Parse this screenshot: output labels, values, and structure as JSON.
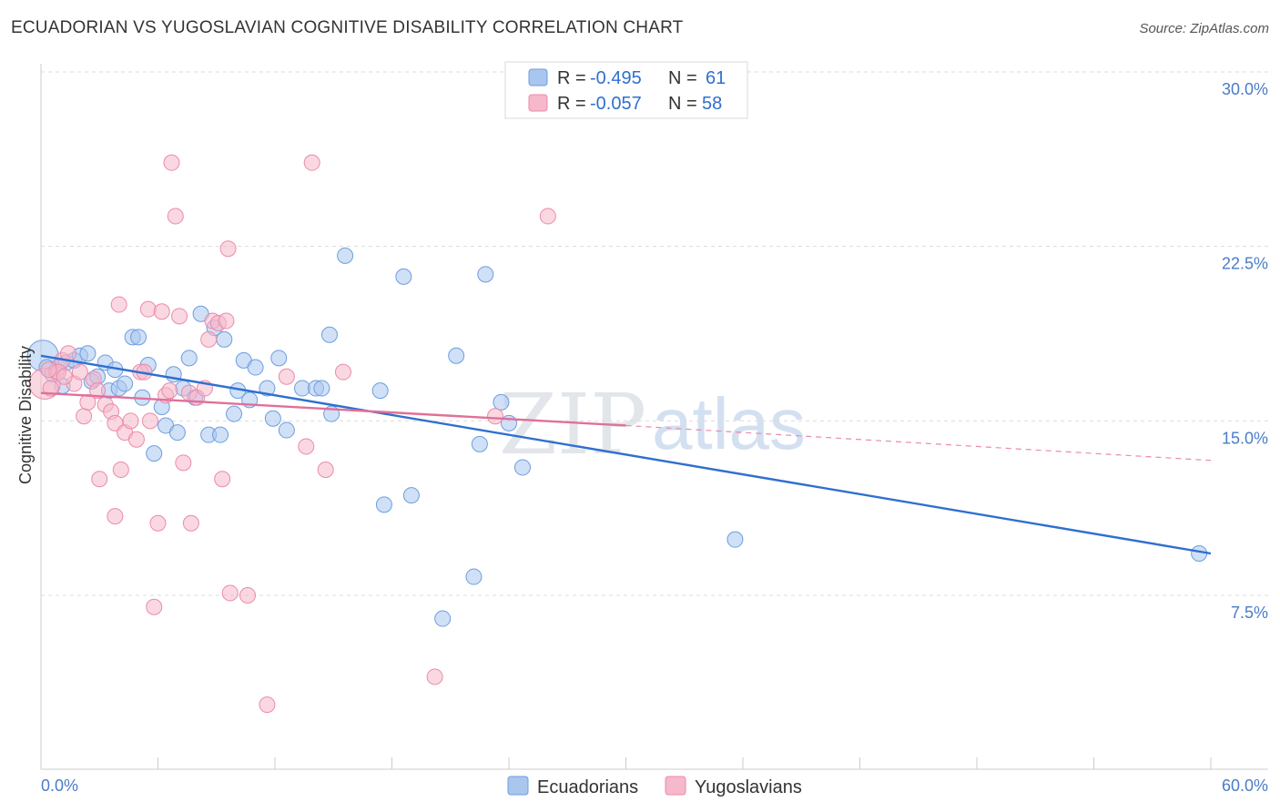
{
  "header": {
    "title": "ECUADORIAN VS YUGOSLAVIAN COGNITIVE DISABILITY CORRELATION CHART",
    "source": "Source: ZipAtlas.com"
  },
  "watermark": {
    "zip": "ZIP",
    "atlas": "atlas"
  },
  "legend_top": [
    {
      "r_label": "R =",
      "r_value": "-0.495",
      "n_label": "N =",
      "n_value": "61",
      "color": "#a9c6ee",
      "stroke": "#6c9ee0"
    },
    {
      "r_label": "R =",
      "r_value": "-0.057",
      "n_label": "N =",
      "n_value": "58",
      "color": "#f6b8cb",
      "stroke": "#ec8aaa"
    }
  ],
  "legend_bottom": [
    {
      "label": "Ecuadorians",
      "color": "#a9c6ee"
    },
    {
      "label": "Yugoslavians",
      "color": "#f6b8cb"
    }
  ],
  "chart_data": {
    "type": "scatter",
    "title": "ECUADORIAN VS YUGOSLAVIAN COGNITIVE DISABILITY CORRELATION CHART",
    "ylabel": "Cognitive Disability",
    "xlabel": "",
    "xlim": [
      0,
      60
    ],
    "ylim": [
      0,
      31
    ],
    "x_ticks": [
      0,
      60
    ],
    "x_tick_labels": [
      "0.0%",
      "60.0%"
    ],
    "y_ticks": [
      7.5,
      15.0,
      22.5,
      30.0
    ],
    "y_tick_labels": [
      "7.5%",
      "15.0%",
      "22.5%",
      "30.0%"
    ],
    "grid": "horizontal dashed",
    "legend_position": "top-center",
    "series": [
      {
        "name": "Ecuadorians",
        "color": "#6c9ee0",
        "fill": "#a9c6ee",
        "trend": {
          "x": [
            0,
            60
          ],
          "y": [
            17.8,
            9.3
          ],
          "style": "solid",
          "color": "#2f6fd0"
        },
        "points": [
          [
            0.1,
            17.8
          ],
          [
            0.3,
            17.3
          ],
          [
            0.6,
            17.0
          ],
          [
            0.9,
            17.3
          ],
          [
            1.1,
            16.5
          ],
          [
            1.3,
            17.5
          ],
          [
            1.7,
            17.6
          ],
          [
            2.0,
            17.8
          ],
          [
            2.4,
            17.9
          ],
          [
            2.6,
            16.7
          ],
          [
            2.9,
            16.9
          ],
          [
            3.3,
            17.5
          ],
          [
            3.5,
            16.3
          ],
          [
            3.8,
            17.2
          ],
          [
            4.0,
            16.4
          ],
          [
            4.3,
            16.6
          ],
          [
            4.7,
            18.6
          ],
          [
            5.0,
            18.6
          ],
          [
            5.2,
            16.0
          ],
          [
            5.5,
            17.4
          ],
          [
            5.8,
            13.6
          ],
          [
            6.2,
            15.6
          ],
          [
            6.4,
            14.8
          ],
          [
            6.8,
            17.0
          ],
          [
            7.0,
            14.5
          ],
          [
            7.3,
            16.4
          ],
          [
            7.6,
            17.7
          ],
          [
            7.9,
            16.0
          ],
          [
            8.2,
            19.6
          ],
          [
            8.6,
            14.4
          ],
          [
            8.9,
            19.0
          ],
          [
            9.2,
            14.4
          ],
          [
            9.4,
            18.5
          ],
          [
            9.9,
            15.3
          ],
          [
            10.1,
            16.3
          ],
          [
            10.4,
            17.6
          ],
          [
            10.7,
            15.9
          ],
          [
            11.0,
            17.3
          ],
          [
            11.6,
            16.4
          ],
          [
            11.9,
            15.1
          ],
          [
            12.2,
            17.7
          ],
          [
            12.6,
            14.6
          ],
          [
            13.4,
            16.4
          ],
          [
            14.1,
            16.4
          ],
          [
            14.4,
            16.4
          ],
          [
            14.8,
            18.7
          ],
          [
            14.9,
            15.3
          ],
          [
            15.6,
            22.1
          ],
          [
            17.4,
            16.3
          ],
          [
            17.6,
            11.4
          ],
          [
            18.6,
            21.2
          ],
          [
            19.0,
            11.8
          ],
          [
            20.6,
            6.5
          ],
          [
            21.3,
            17.8
          ],
          [
            22.2,
            8.3
          ],
          [
            22.5,
            14.0
          ],
          [
            22.8,
            21.3
          ],
          [
            23.6,
            15.8
          ],
          [
            24.0,
            14.9
          ],
          [
            24.7,
            13.0
          ],
          [
            35.6,
            9.9
          ],
          [
            59.4,
            9.3
          ]
        ]
      },
      {
        "name": "Yugoslavians",
        "color": "#ec8aaa",
        "fill": "#f6b8cb",
        "trend": {
          "x": [
            0,
            30
          ],
          "y": [
            16.2,
            14.8
          ],
          "style": "solid",
          "color": "#e0709a"
        },
        "trend_ext": {
          "x": [
            30,
            60
          ],
          "y": [
            14.8,
            13.3
          ],
          "style": "dashed",
          "color": "#e88aac"
        },
        "points": [
          [
            0.2,
            16.6
          ],
          [
            0.5,
            16.4
          ],
          [
            0.8,
            17.1
          ],
          [
            1.1,
            17.6
          ],
          [
            1.4,
            17.9
          ],
          [
            1.7,
            16.6
          ],
          [
            2.0,
            17.1
          ],
          [
            2.2,
            15.2
          ],
          [
            2.4,
            15.8
          ],
          [
            2.7,
            16.8
          ],
          [
            2.9,
            16.3
          ],
          [
            3.0,
            12.5
          ],
          [
            3.3,
            15.7
          ],
          [
            3.6,
            15.4
          ],
          [
            3.8,
            14.9
          ],
          [
            3.8,
            10.9
          ],
          [
            4.0,
            20.0
          ],
          [
            4.1,
            12.9
          ],
          [
            4.3,
            14.5
          ],
          [
            4.6,
            15.0
          ],
          [
            4.9,
            14.2
          ],
          [
            5.1,
            17.1
          ],
          [
            5.3,
            17.1
          ],
          [
            5.5,
            19.8
          ],
          [
            5.6,
            15.0
          ],
          [
            5.8,
            7.0
          ],
          [
            6.0,
            10.6
          ],
          [
            6.2,
            19.7
          ],
          [
            6.4,
            16.1
          ],
          [
            6.6,
            16.3
          ],
          [
            6.7,
            26.1
          ],
          [
            6.9,
            23.8
          ],
          [
            7.1,
            19.5
          ],
          [
            7.3,
            13.2
          ],
          [
            7.6,
            16.2
          ],
          [
            7.7,
            10.6
          ],
          [
            8.0,
            16.0
          ],
          [
            8.4,
            16.4
          ],
          [
            8.6,
            18.5
          ],
          [
            8.8,
            19.3
          ],
          [
            9.1,
            19.2
          ],
          [
            9.3,
            12.5
          ],
          [
            9.5,
            19.3
          ],
          [
            9.6,
            22.4
          ],
          [
            9.7,
            7.6
          ],
          [
            10.6,
            7.5
          ],
          [
            11.6,
            2.8
          ],
          [
            12.6,
            16.9
          ],
          [
            13.6,
            13.9
          ],
          [
            13.9,
            26.1
          ],
          [
            14.6,
            12.9
          ],
          [
            15.5,
            17.1
          ],
          [
            20.2,
            4.0
          ],
          [
            23.3,
            15.2
          ],
          [
            26.0,
            23.8
          ],
          [
            0.9,
            17.1
          ],
          [
            1.2,
            16.9
          ],
          [
            0.4,
            17.2
          ]
        ]
      }
    ]
  }
}
